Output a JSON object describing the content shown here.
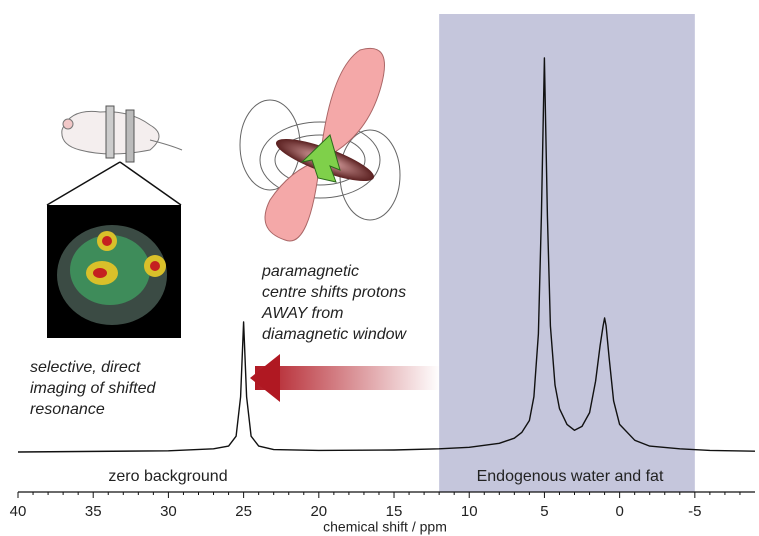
{
  "chart_data": {
    "type": "line",
    "x": [
      40,
      30,
      27,
      26,
      25.5,
      25.2,
      25,
      24.8,
      24.5,
      24,
      23,
      20,
      15,
      12,
      10,
      8,
      7,
      6.5,
      6,
      5.7,
      5.4,
      5.2,
      5,
      4.8,
      4.6,
      4.3,
      4,
      3.5,
      3,
      2.5,
      2,
      1.6,
      1.3,
      1.1,
      1,
      0.9,
      0.7,
      0.4,
      0,
      -1,
      -2,
      -4,
      -6,
      -9
    ],
    "values": [
      0,
      0.3,
      0.8,
      1.5,
      4,
      14,
      33,
      14,
      4,
      1.5,
      0.6,
      0.4,
      0.5,
      0.8,
      1.2,
      2.2,
      3.5,
      5,
      8,
      14,
      30,
      60,
      100,
      60,
      32,
      17,
      11,
      7,
      5.5,
      6.5,
      10,
      18,
      27,
      32,
      34,
      32,
      24,
      13,
      7,
      3,
      1.5,
      0.8,
      0.4,
      0.2
    ],
    "color": "#111111",
    "xlabel": "chemical shift / ppm",
    "xlim": [
      40,
      -9
    ],
    "xticks": [
      40,
      35,
      30,
      25,
      20,
      15,
      10,
      5,
      0,
      -5
    ],
    "ylim": [
      0,
      100
    ],
    "shaded_region": [
      12,
      -5
    ],
    "shaded_color": "#c5c6dc",
    "annotations": [
      {
        "lines": [
          "zero background"
        ]
      },
      {
        "lines": [
          "Endogenous water and fat"
        ]
      },
      {
        "lines": [
          "paramagnetic",
          "centre shifts protons",
          "AWAY from",
          "diamagnetic window"
        ]
      },
      {
        "lines": [
          "selective, direct",
          "imaging of shifted",
          "resonance"
        ]
      }
    ]
  }
}
